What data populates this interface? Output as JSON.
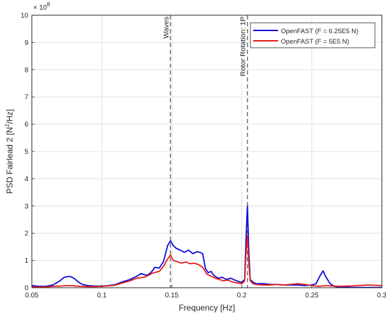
{
  "colors": {
    "series_1": "#0b0bd9",
    "series_2": "#e81a1a",
    "marker_lines": "#6e6e6e",
    "grid": "#dcdcdc",
    "axis": "#262626",
    "corner_badge": "#f7c400"
  },
  "chart_data": {
    "type": "line",
    "xlabel": "Frequency [Hz]",
    "ylabel": "PSD Fairlead 2 [N²/Hz]",
    "ylabel_main": "PSD Fairlead 2 [N",
    "ylabel_sup": "2",
    "ylabel_tail": "/Hz]",
    "y_exponent_base": "× 10",
    "y_exponent_power": "8",
    "xlim": [
      0.05,
      0.3
    ],
    "ylim": [
      0,
      10
    ],
    "y_scale": 100000000,
    "grid": true,
    "legend_position": "top-right",
    "x_ticks": [
      0.05,
      0.1,
      0.15,
      0.2,
      0.25,
      0.3
    ],
    "x_tick_labels": [
      "0.05",
      "0.1",
      "0.15",
      "0.2",
      "0.25",
      "0.3"
    ],
    "y_ticks": [
      0,
      1,
      2,
      3,
      4,
      5,
      6,
      7,
      8,
      9,
      10
    ],
    "y_tick_labels": [
      "0",
      "1",
      "2",
      "3",
      "4",
      "5",
      "6",
      "7",
      "8",
      "9",
      "10"
    ],
    "annotations": [
      {
        "x": 0.149,
        "label": "Waves"
      },
      {
        "x": 0.204,
        "label": "Rotor Rotation: 1P"
      }
    ],
    "series": [
      {
        "name": "OpenFAST (F = 6.25E5 N)",
        "color": "#0b0bd9",
        "points": [
          [
            0.05,
            0.08
          ],
          [
            0.055,
            0.05
          ],
          [
            0.06,
            0.05
          ],
          [
            0.065,
            0.1
          ],
          [
            0.07,
            0.25
          ],
          [
            0.073,
            0.38
          ],
          [
            0.077,
            0.42
          ],
          [
            0.08,
            0.35
          ],
          [
            0.083,
            0.22
          ],
          [
            0.086,
            0.12
          ],
          [
            0.09,
            0.08
          ],
          [
            0.095,
            0.06
          ],
          [
            0.1,
            0.06
          ],
          [
            0.105,
            0.08
          ],
          [
            0.11,
            0.12
          ],
          [
            0.115,
            0.22
          ],
          [
            0.12,
            0.3
          ],
          [
            0.125,
            0.42
          ],
          [
            0.128,
            0.52
          ],
          [
            0.132,
            0.45
          ],
          [
            0.135,
            0.55
          ],
          [
            0.138,
            0.75
          ],
          [
            0.141,
            0.72
          ],
          [
            0.144,
            0.95
          ],
          [
            0.147,
            1.55
          ],
          [
            0.149,
            1.72
          ],
          [
            0.151,
            1.55
          ],
          [
            0.153,
            1.45
          ],
          [
            0.156,
            1.38
          ],
          [
            0.159,
            1.3
          ],
          [
            0.162,
            1.38
          ],
          [
            0.165,
            1.25
          ],
          [
            0.168,
            1.32
          ],
          [
            0.17,
            1.3
          ],
          [
            0.172,
            1.25
          ],
          [
            0.174,
            0.7
          ],
          [
            0.176,
            0.55
          ],
          [
            0.178,
            0.6
          ],
          [
            0.18,
            0.45
          ],
          [
            0.183,
            0.35
          ],
          [
            0.186,
            0.38
          ],
          [
            0.189,
            0.3
          ],
          [
            0.192,
            0.35
          ],
          [
            0.195,
            0.28
          ],
          [
            0.198,
            0.22
          ],
          [
            0.2,
            0.2
          ],
          [
            0.202,
            0.3
          ],
          [
            0.203,
            1.8
          ],
          [
            0.204,
            3.0
          ],
          [
            0.205,
            1.3
          ],
          [
            0.206,
            0.3
          ],
          [
            0.208,
            0.2
          ],
          [
            0.21,
            0.15
          ],
          [
            0.215,
            0.15
          ],
          [
            0.22,
            0.12
          ],
          [
            0.225,
            0.12
          ],
          [
            0.23,
            0.1
          ],
          [
            0.235,
            0.1
          ],
          [
            0.24,
            0.1
          ],
          [
            0.245,
            0.08
          ],
          [
            0.25,
            0.1
          ],
          [
            0.253,
            0.15
          ],
          [
            0.256,
            0.45
          ],
          [
            0.258,
            0.62
          ],
          [
            0.26,
            0.4
          ],
          [
            0.263,
            0.15
          ],
          [
            0.266,
            0.05
          ],
          [
            0.27,
            0.02
          ],
          [
            0.28,
            0.01
          ],
          [
            0.29,
            0.01
          ],
          [
            0.3,
            0.01
          ]
        ]
      },
      {
        "name": "OpenFAST (F = 5E5 N)",
        "color": "#e81a1a",
        "points": [
          [
            0.05,
            0.03
          ],
          [
            0.055,
            0.02
          ],
          [
            0.06,
            0.03
          ],
          [
            0.065,
            0.05
          ],
          [
            0.07,
            0.06
          ],
          [
            0.075,
            0.08
          ],
          [
            0.08,
            0.07
          ],
          [
            0.085,
            0.05
          ],
          [
            0.09,
            0.04
          ],
          [
            0.095,
            0.04
          ],
          [
            0.1,
            0.05
          ],
          [
            0.105,
            0.07
          ],
          [
            0.11,
            0.1
          ],
          [
            0.115,
            0.18
          ],
          [
            0.12,
            0.25
          ],
          [
            0.125,
            0.35
          ],
          [
            0.13,
            0.38
          ],
          [
            0.133,
            0.45
          ],
          [
            0.137,
            0.55
          ],
          [
            0.141,
            0.6
          ],
          [
            0.144,
            0.78
          ],
          [
            0.147,
            1.05
          ],
          [
            0.149,
            1.2
          ],
          [
            0.151,
            1.0
          ],
          [
            0.154,
            0.95
          ],
          [
            0.157,
            0.9
          ],
          [
            0.16,
            0.95
          ],
          [
            0.163,
            0.88
          ],
          [
            0.166,
            0.9
          ],
          [
            0.169,
            0.85
          ],
          [
            0.172,
            0.75
          ],
          [
            0.175,
            0.5
          ],
          [
            0.178,
            0.42
          ],
          [
            0.181,
            0.35
          ],
          [
            0.184,
            0.3
          ],
          [
            0.187,
            0.25
          ],
          [
            0.19,
            0.28
          ],
          [
            0.193,
            0.22
          ],
          [
            0.196,
            0.18
          ],
          [
            0.2,
            0.15
          ],
          [
            0.202,
            0.25
          ],
          [
            0.203,
            1.3
          ],
          [
            0.204,
            1.92
          ],
          [
            0.205,
            0.9
          ],
          [
            0.206,
            0.25
          ],
          [
            0.208,
            0.15
          ],
          [
            0.21,
            0.12
          ],
          [
            0.215,
            0.1
          ],
          [
            0.22,
            0.1
          ],
          [
            0.225,
            0.12
          ],
          [
            0.23,
            0.1
          ],
          [
            0.235,
            0.12
          ],
          [
            0.24,
            0.15
          ],
          [
            0.245,
            0.12
          ],
          [
            0.25,
            0.08
          ],
          [
            0.255,
            0.05
          ],
          [
            0.26,
            0.08
          ],
          [
            0.265,
            0.06
          ],
          [
            0.27,
            0.05
          ],
          [
            0.28,
            0.07
          ],
          [
            0.29,
            0.1
          ],
          [
            0.3,
            0.08
          ]
        ]
      }
    ]
  }
}
